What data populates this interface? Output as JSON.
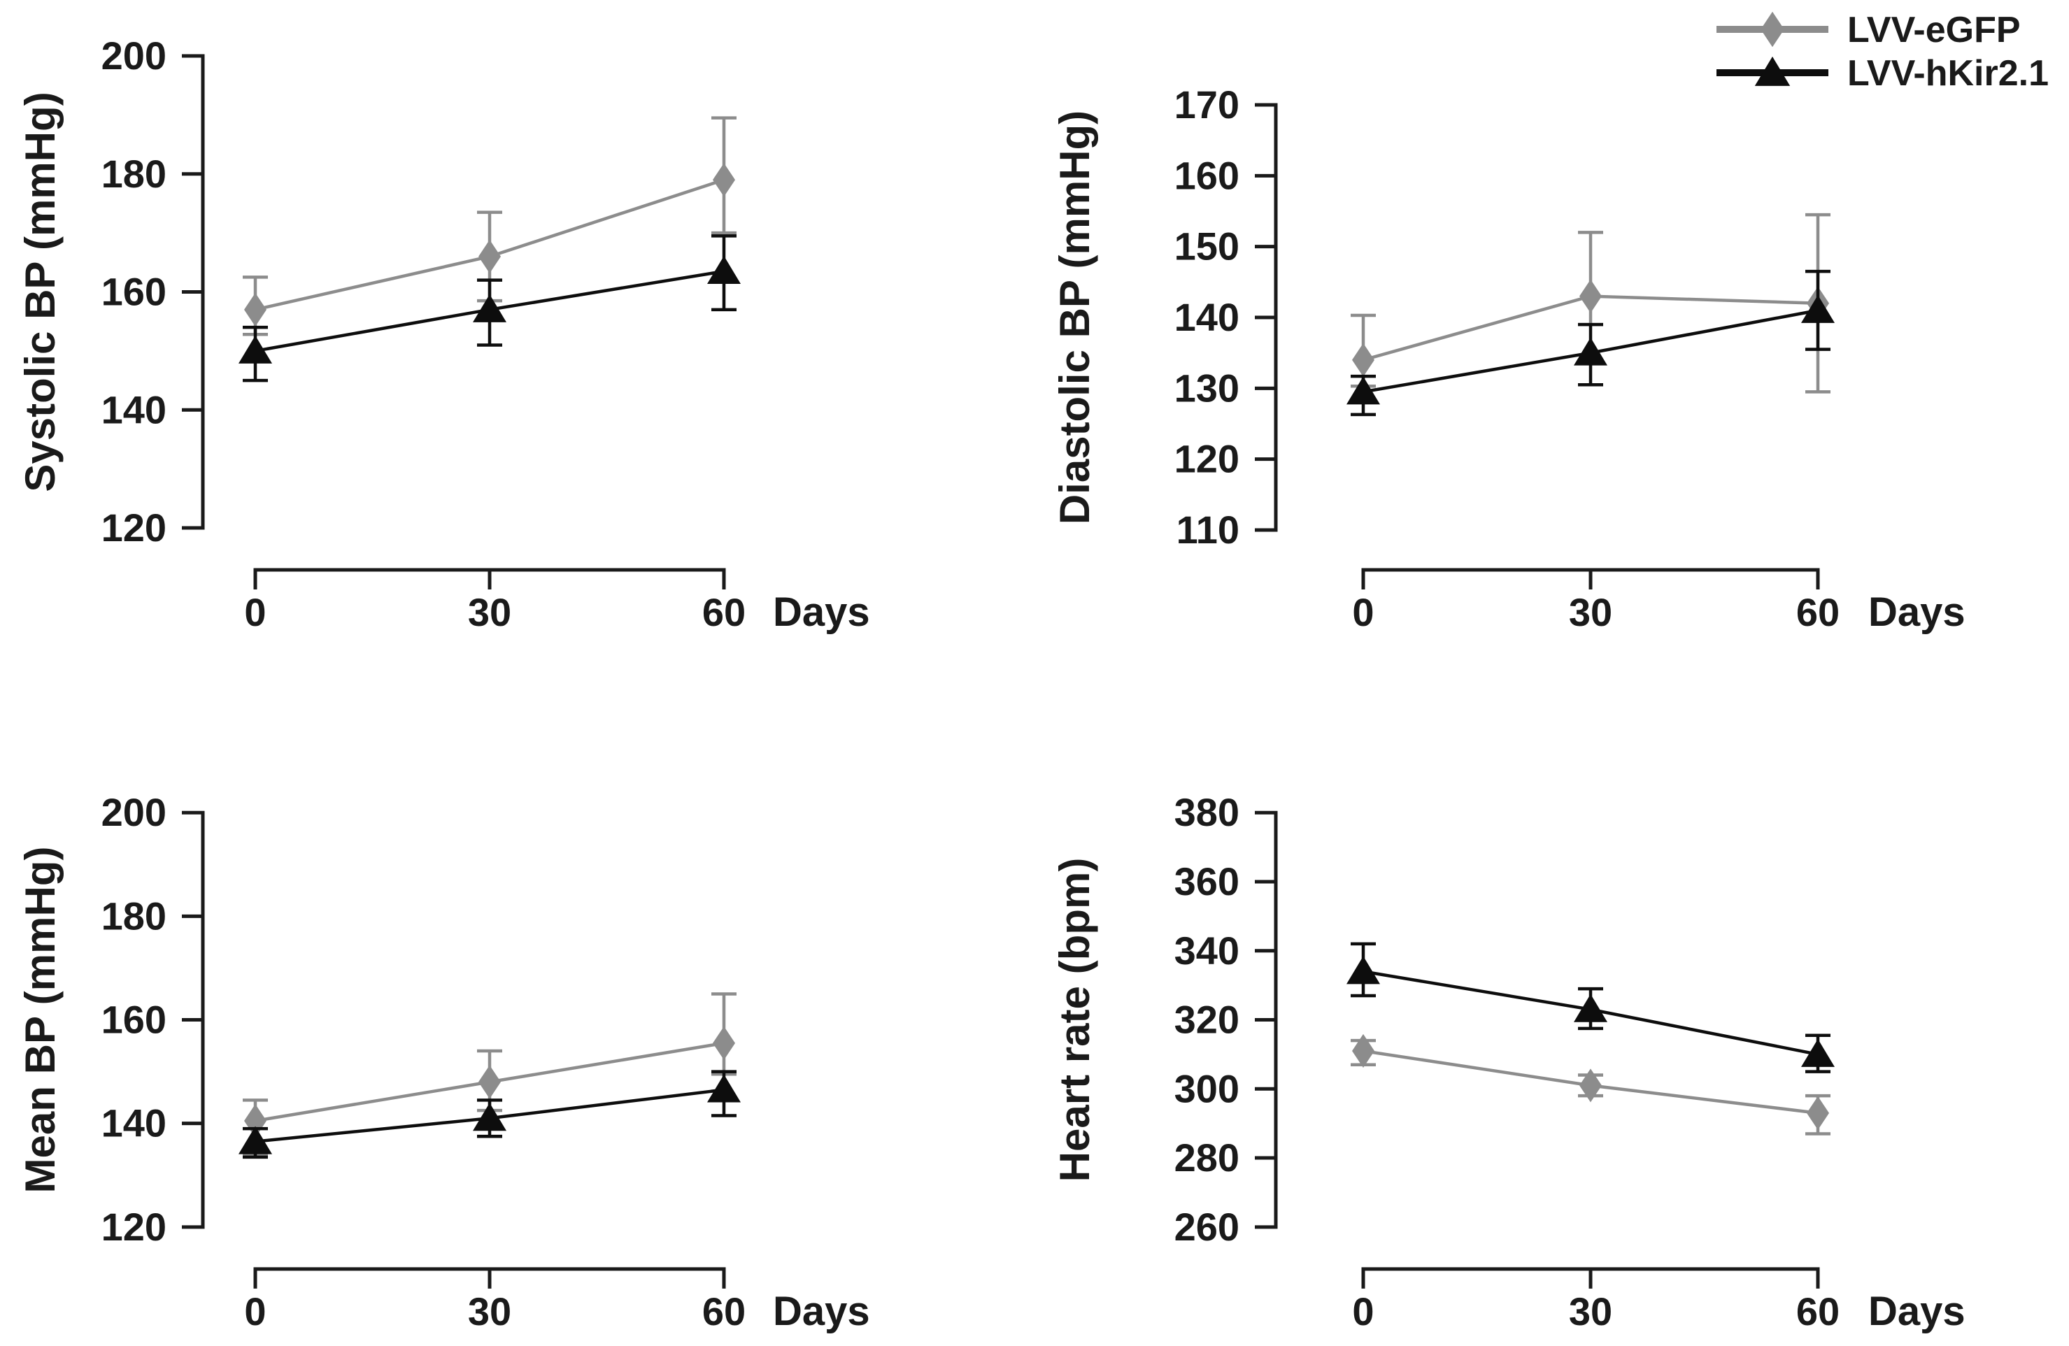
{
  "figure": {
    "background": "#ffffff",
    "x_axis_unit": "Days",
    "x_tick_labels": [
      "0",
      "30",
      "60"
    ],
    "text_color": "#1a1a1a"
  },
  "legend": {
    "position": "top-right",
    "entries": [
      {
        "label": "LVV-eGFP",
        "color": "#8c8c8c",
        "marker": "diamond"
      },
      {
        "label": "LVV-hKir2.1",
        "color": "#0d0d0d",
        "marker": "triangle"
      }
    ]
  },
  "chart_data": [
    {
      "id": "systolic-bp",
      "type": "line",
      "title": "",
      "ylabel": "Systolic BP (mmHg)",
      "xlabel": "Days",
      "x": [
        0,
        30,
        60
      ],
      "ylim": [
        120,
        200
      ],
      "ytick_step": 20,
      "ytick_labels": [
        "120",
        "140",
        "160",
        "180",
        "200"
      ],
      "grid": false,
      "series": [
        {
          "name": "LVV-eGFP",
          "marker": "diamond",
          "color": "#8c8c8c",
          "values": [
            157,
            166,
            179
          ],
          "err_plus": [
            5.5,
            7.5,
            10.5
          ],
          "err_minus": [
            4.2,
            7.5,
            9
          ]
        },
        {
          "name": "LVV-hKir2.1",
          "marker": "triangle",
          "color": "#0d0d0d",
          "values": [
            150,
            157,
            163.5
          ],
          "err_plus": [
            4,
            5,
            6
          ],
          "err_minus": [
            5,
            6,
            6.5
          ]
        }
      ]
    },
    {
      "id": "diastolic-bp",
      "type": "line",
      "title": "",
      "ylabel": "Diastolic BP (mmHg)",
      "xlabel": "Days",
      "x": [
        0,
        30,
        60
      ],
      "ylim": [
        110,
        170
      ],
      "ytick_step": 10,
      "ytick_labels": [
        "110",
        "120",
        "130",
        "140",
        "150",
        "160",
        "170"
      ],
      "grid": false,
      "series": [
        {
          "name": "LVV-eGFP",
          "marker": "diamond",
          "color": "#8c8c8c",
          "values": [
            134,
            143,
            142
          ],
          "err_plus": [
            6.3,
            9,
            12.5
          ],
          "err_minus": [
            3.7,
            4,
            12.5
          ]
        },
        {
          "name": "LVV-hKir2.1",
          "marker": "triangle",
          "color": "#0d0d0d",
          "values": [
            129.5,
            135,
            141
          ],
          "err_plus": [
            2.2,
            4,
            5.5
          ],
          "err_minus": [
            3.2,
            4.5,
            5.5
          ]
        }
      ]
    },
    {
      "id": "mean-bp",
      "type": "line",
      "title": "",
      "ylabel": "Mean BP (mmHg)",
      "xlabel": "Days",
      "x": [
        0,
        30,
        60
      ],
      "ylim": [
        120,
        200
      ],
      "ytick_step": 20,
      "ytick_labels": [
        "120",
        "140",
        "160",
        "180",
        "200"
      ],
      "grid": false,
      "series": [
        {
          "name": "LVV-eGFP",
          "marker": "diamond",
          "color": "#8c8c8c",
          "values": [
            140.5,
            148,
            155.5
          ],
          "err_plus": [
            4,
            6,
            9.5
          ],
          "err_minus": [
            6.5,
            5.5,
            6
          ]
        },
        {
          "name": "LVV-hKir2.1",
          "marker": "triangle",
          "color": "#0d0d0d",
          "values": [
            136.5,
            141,
            146.5
          ],
          "err_plus": [
            2.5,
            3.5,
            3.5
          ],
          "err_minus": [
            3,
            3.5,
            5
          ]
        }
      ]
    },
    {
      "id": "heart-rate",
      "type": "line",
      "title": "",
      "ylabel": "Heart rate (bpm)",
      "xlabel": "Days",
      "x": [
        0,
        30,
        60
      ],
      "ylim": [
        260,
        380
      ],
      "ytick_step": 20,
      "ytick_labels": [
        "260",
        "280",
        "300",
        "320",
        "340",
        "360",
        "380"
      ],
      "grid": false,
      "series": [
        {
          "name": "LVV-eGFP",
          "marker": "diamond",
          "color": "#8c8c8c",
          "values": [
            311,
            301,
            293
          ],
          "err_plus": [
            3,
            3,
            5
          ],
          "err_minus": [
            4,
            3,
            6
          ]
        },
        {
          "name": "LVV-hKir2.1",
          "marker": "triangle",
          "color": "#0d0d0d",
          "values": [
            334,
            323,
            310
          ],
          "err_plus": [
            8,
            6,
            5.5
          ],
          "err_minus": [
            7,
            5.5,
            5
          ]
        }
      ]
    }
  ]
}
